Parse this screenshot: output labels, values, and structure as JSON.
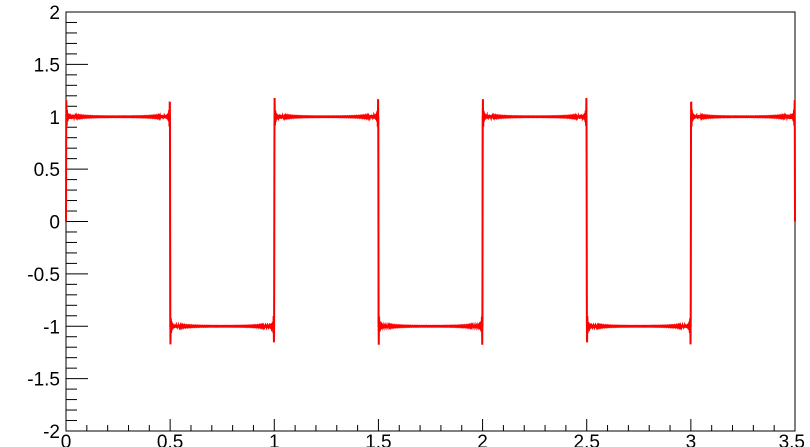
{
  "chart_data": {
    "type": "line",
    "title": "",
    "xlabel": "",
    "ylabel": "",
    "xlim": [
      0,
      3.5
    ],
    "ylim": [
      -2,
      2
    ],
    "grid": false,
    "x_ticks": [
      0,
      0.5,
      1,
      1.5,
      2,
      2.5,
      3,
      3.5
    ],
    "x_tick_labels": [
      "0",
      "0.5",
      "1",
      "1.5",
      "2",
      "2.5",
      "3",
      "3.5"
    ],
    "y_ticks": [
      2,
      1.5,
      1,
      0.5,
      0,
      -0.5,
      -1,
      -1.5,
      -2
    ],
    "y_tick_labels": [
      "2",
      "1.5",
      "1",
      "0.5",
      "0",
      "-0.5",
      "-1",
      "-1.5",
      "-2"
    ],
    "series": [
      {
        "kind": "square-wave",
        "color": "#0000ff",
        "period": 1,
        "amplitude": 1,
        "x": [
          0,
          0.5,
          0.5,
          1,
          1,
          1.5,
          1.5,
          2,
          2,
          2.5,
          2.5,
          3,
          3,
          3.5
        ],
        "y": [
          1,
          1,
          -1,
          -1,
          1,
          1,
          -1,
          -1,
          1,
          1,
          -1,
          -1,
          1,
          1
        ]
      },
      {
        "kind": "fourier-approximation",
        "color": "#ff0000",
        "period": 1,
        "amplitude": 1,
        "overshoot_peak": 1.18,
        "x": [
          0,
          0.5,
          1,
          1.5,
          2,
          2.5,
          3,
          3.5
        ],
        "y": [
          0,
          1,
          1,
          -1,
          1,
          -1,
          1,
          1
        ]
      }
    ]
  }
}
